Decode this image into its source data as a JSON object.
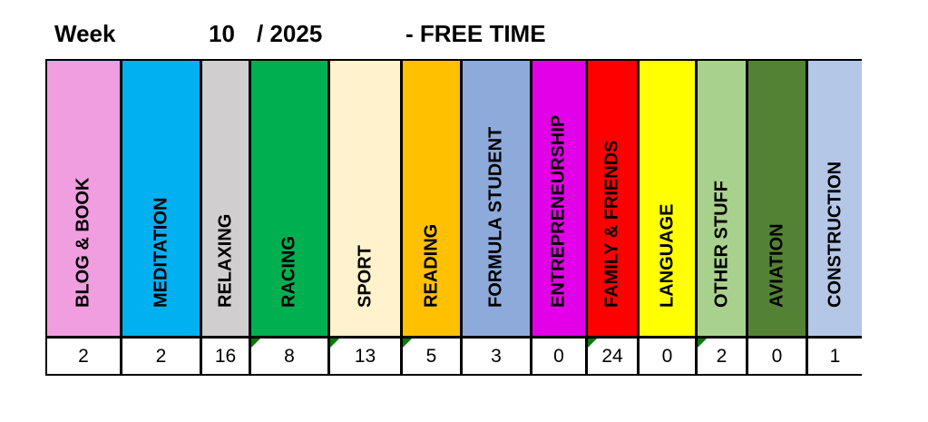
{
  "header": {
    "week_label": "Week",
    "week_number": "10",
    "year": "/ 2025",
    "subtitle": "- FREE TIME"
  },
  "categories": [
    {
      "label": "BLOG & BOOK",
      "value": "2",
      "color": "#f09ee0",
      "comment": false
    },
    {
      "label": "MEDITATION",
      "value": "2",
      "color": "#00b0f0",
      "comment": false
    },
    {
      "label": "RELAXING",
      "value": "16",
      "color": "#d0cece",
      "comment": false
    },
    {
      "label": "RACING",
      "value": "8",
      "color": "#00b050",
      "comment": true
    },
    {
      "label": "SPORT",
      "value": "13",
      "color": "#fff2cc",
      "comment": true
    },
    {
      "label": "READING",
      "value": "5",
      "color": "#ffc000",
      "comment": true
    },
    {
      "label": "FORMULA STUDENT",
      "value": "3",
      "color": "#8eaadb",
      "comment": false
    },
    {
      "label": "ENTREPRENEURSHIP",
      "value": "0",
      "color": "#e100e8",
      "comment": false
    },
    {
      "label": "FAMILY & FRIENDS",
      "value": "24",
      "color": "#ff0000",
      "comment": true
    },
    {
      "label": "LANGUAGE",
      "value": "0",
      "color": "#ffff00",
      "comment": false
    },
    {
      "label": "OTHER STUFF",
      "value": "2",
      "color": "#a9d18e",
      "comment": true
    },
    {
      "label": "AVIATION",
      "value": "0",
      "color": "#548235",
      "comment": false
    },
    {
      "label": "CONSTRUCTION",
      "value": "1",
      "color": "#b4c7e7",
      "comment": false
    }
  ]
}
